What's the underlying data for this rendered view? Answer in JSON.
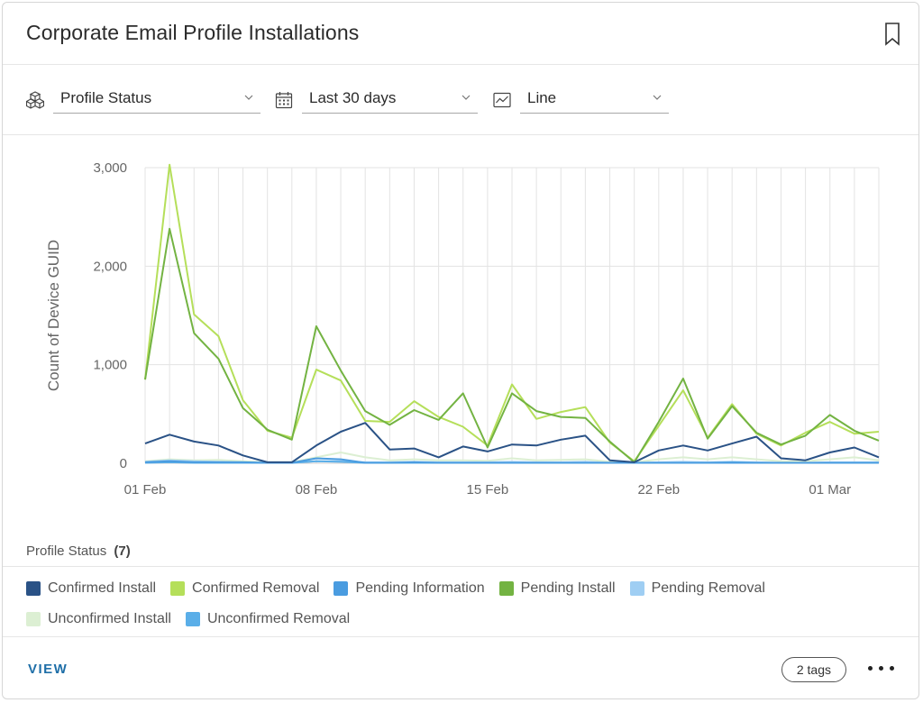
{
  "card": {
    "title": "Corporate Email Profile Installations",
    "bookmark_icon": "bookmark-icon"
  },
  "controls": {
    "group_by": {
      "icon": "cubes-icon",
      "value": "Profile Status"
    },
    "date_range": {
      "icon": "calendar-icon",
      "value": "Last 30 days"
    },
    "chart_type": {
      "icon": "line-chart-icon",
      "value": "Line"
    }
  },
  "legend": {
    "title": "Profile Status",
    "count": "(7)"
  },
  "footer": {
    "view_label": "VIEW",
    "tags_label": "2 tags",
    "more_icon": "more-dots-icon"
  },
  "colors": {
    "Confirmed Install": "#2a5286",
    "Confirmed Removal": "#b5df5a",
    "Pending Information": "#4a9ce0",
    "Pending Install": "#73b342",
    "Pending Removal": "#9fcef3",
    "Unconfirmed Install": "#dcefd3",
    "Unconfirmed Removal": "#5aaee8"
  },
  "chart_data": {
    "type": "line",
    "ylabel": "Count of Device GUID",
    "xlabel": "",
    "ylim": [
      0,
      3000
    ],
    "yticks": [
      0,
      1000,
      2000,
      3000
    ],
    "ytick_labels": [
      "0",
      "1,000",
      "2,000",
      "3,000"
    ],
    "x_ticks": [
      "01 Feb",
      "08 Feb",
      "15 Feb",
      "22 Feb",
      "01 Mar"
    ],
    "x_tick_index": [
      0,
      7,
      14,
      21,
      28
    ],
    "grid": true,
    "legend_position": "bottom",
    "x": [
      "01 Feb",
      "02 Feb",
      "03 Feb",
      "04 Feb",
      "05 Feb",
      "06 Feb",
      "07 Feb",
      "08 Feb",
      "09 Feb",
      "10 Feb",
      "11 Feb",
      "12 Feb",
      "13 Feb",
      "14 Feb",
      "15 Feb",
      "16 Feb",
      "17 Feb",
      "18 Feb",
      "19 Feb",
      "20 Feb",
      "21 Feb",
      "22 Feb",
      "23 Feb",
      "24 Feb",
      "25 Feb",
      "26 Feb",
      "27 Feb",
      "28 Feb",
      "01 Mar",
      "02 Mar",
      "03 Mar"
    ],
    "series": [
      {
        "name": "Confirmed Install",
        "values": [
          200,
          290,
          220,
          180,
          80,
          10,
          10,
          180,
          320,
          410,
          140,
          150,
          60,
          170,
          120,
          190,
          180,
          240,
          280,
          30,
          10,
          130,
          180,
          130,
          200,
          270,
          50,
          30,
          110,
          160,
          60
        ]
      },
      {
        "name": "Confirmed Removal",
        "values": [
          850,
          3030,
          1510,
          1290,
          640,
          330,
          260,
          950,
          840,
          430,
          420,
          630,
          470,
          370,
          180,
          800,
          450,
          520,
          570,
          210,
          20,
          380,
          740,
          260,
          600,
          300,
          180,
          310,
          420,
          300,
          320
        ]
      },
      {
        "name": "Pending Information",
        "values": [
          10,
          20,
          10,
          10,
          10,
          5,
          5,
          50,
          40,
          5,
          5,
          10,
          5,
          5,
          5,
          5,
          5,
          5,
          5,
          5,
          5,
          5,
          5,
          5,
          5,
          5,
          5,
          5,
          5,
          5,
          5
        ]
      },
      {
        "name": "Pending Install",
        "values": [
          850,
          2380,
          1320,
          1060,
          560,
          340,
          240,
          1390,
          940,
          530,
          390,
          540,
          440,
          710,
          160,
          710,
          530,
          470,
          460,
          220,
          10,
          420,
          860,
          250,
          580,
          310,
          190,
          280,
          490,
          330,
          230
        ]
      },
      {
        "name": "Pending Removal",
        "values": [
          15,
          30,
          20,
          15,
          10,
          5,
          5,
          20,
          20,
          10,
          10,
          15,
          10,
          10,
          10,
          15,
          10,
          10,
          15,
          5,
          5,
          10,
          15,
          10,
          15,
          10,
          5,
          5,
          10,
          10,
          10
        ]
      },
      {
        "name": "Unconfirmed Install",
        "values": [
          20,
          40,
          30,
          35,
          20,
          10,
          10,
          60,
          110,
          60,
          30,
          40,
          30,
          30,
          25,
          50,
          30,
          35,
          40,
          15,
          10,
          40,
          60,
          40,
          60,
          40,
          20,
          20,
          40,
          60,
          30
        ]
      },
      {
        "name": "Unconfirmed Removal",
        "values": [
          5,
          10,
          5,
          5,
          5,
          5,
          5,
          20,
          15,
          5,
          5,
          5,
          5,
          5,
          5,
          5,
          5,
          5,
          5,
          5,
          5,
          5,
          5,
          5,
          10,
          5,
          5,
          5,
          5,
          5,
          5
        ]
      }
    ]
  }
}
